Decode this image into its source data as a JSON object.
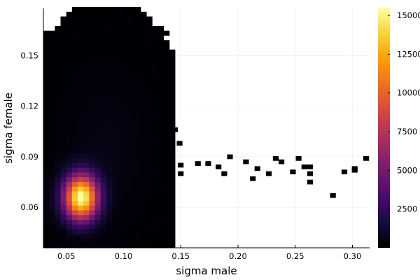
{
  "chart_data": {
    "type": "heatmap",
    "subtype": "2d-histogram",
    "xlabel": "sigma male",
    "ylabel": "sigma female",
    "xlim": [
      0.03,
      0.315
    ],
    "ylim": [
      0.036,
      0.178
    ],
    "x_ticks": [
      0.05,
      0.1,
      0.15,
      0.2,
      0.25,
      0.3
    ],
    "x_tick_labels": [
      "0.05",
      "0.10",
      "0.15",
      "0.20",
      "0.25",
      "0.30"
    ],
    "y_ticks": [
      0.06,
      0.09,
      0.12,
      0.15
    ],
    "y_tick_labels": [
      "0.06",
      "0.09",
      "0.12",
      "0.15"
    ],
    "grid": true,
    "colormap": "inferno",
    "colorbar": {
      "range": [
        0,
        15500
      ],
      "ticks": [
        2500,
        5000,
        7500,
        10000,
        12500,
        15000
      ],
      "tick_labels": [
        "2500",
        "5000",
        "7500",
        "10000",
        "12500",
        "15000"
      ]
    },
    "peak": {
      "x": 0.061,
      "y": 0.063,
      "count": 15500
    },
    "density_core": {
      "center_x": 0.063,
      "center_y": 0.066,
      "sigma_x": 0.0105,
      "sigma_y": 0.0095,
      "peak_count": 15500
    },
    "density_tail": {
      "center_x": 0.085,
      "center_y": 0.095,
      "sigma_x": 0.024,
      "sigma_y": 0.028,
      "peak_count": 450
    },
    "outlier_cells": [
      [
        0.165,
        0.086
      ],
      [
        0.174,
        0.086
      ],
      [
        0.183,
        0.084
      ],
      [
        0.188,
        0.08
      ],
      [
        0.193,
        0.09
      ],
      [
        0.207,
        0.087
      ],
      [
        0.213,
        0.077
      ],
      [
        0.217,
        0.083
      ],
      [
        0.227,
        0.08
      ],
      [
        0.233,
        0.089
      ],
      [
        0.238,
        0.087
      ],
      [
        0.248,
        0.081
      ],
      [
        0.253,
        0.089
      ],
      [
        0.258,
        0.084
      ],
      [
        0.263,
        0.084
      ],
      [
        0.263,
        0.08
      ],
      [
        0.263,
        0.075
      ],
      [
        0.283,
        0.067
      ],
      [
        0.293,
        0.081
      ],
      [
        0.302,
        0.083
      ],
      [
        0.302,
        0.082
      ],
      [
        0.312,
        0.089
      ],
      [
        0.135,
        0.129
      ],
      [
        0.14,
        0.122
      ],
      [
        0.142,
        0.113
      ],
      [
        0.145,
        0.106
      ],
      [
        0.149,
        0.098
      ],
      [
        0.15,
        0.085
      ],
      [
        0.15,
        0.08
      ],
      [
        0.138,
        0.07
      ],
      [
        0.136,
        0.055
      ],
      [
        0.128,
        0.05
      ],
      [
        0.098,
        0.176
      ],
      [
        0.105,
        0.172
      ],
      [
        0.12,
        0.165
      ],
      [
        0.125,
        0.16
      ],
      [
        0.117,
        0.158
      ],
      [
        0.112,
        0.152
      ],
      [
        0.118,
        0.146
      ],
      [
        0.125,
        0.142
      ],
      [
        0.13,
        0.136
      ],
      [
        0.058,
        0.138
      ],
      [
        0.042,
        0.105
      ],
      [
        0.036,
        0.084
      ],
      [
        0.034,
        0.08
      ],
      [
        0.048,
        0.045
      ],
      [
        0.06,
        0.041
      ],
      [
        0.078,
        0.039
      ],
      [
        0.093,
        0.038
      ],
      [
        0.112,
        0.044
      ],
      [
        0.122,
        0.046
      ],
      [
        0.128,
        0.052
      ],
      [
        0.132,
        0.06
      ]
    ]
  }
}
